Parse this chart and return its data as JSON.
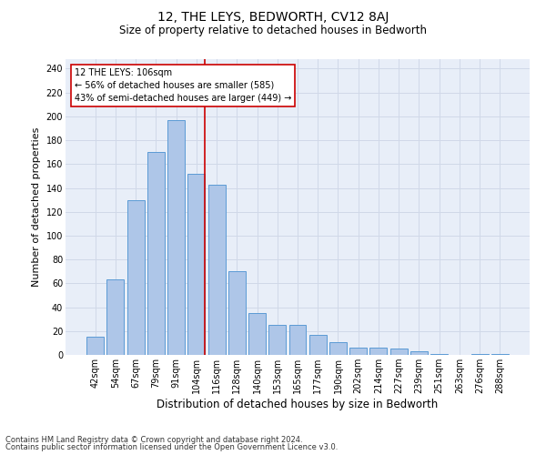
{
  "title": "12, THE LEYS, BEDWORTH, CV12 8AJ",
  "subtitle": "Size of property relative to detached houses in Bedworth",
  "xlabel": "Distribution of detached houses by size in Bedworth",
  "ylabel": "Number of detached properties",
  "footnote1": "Contains HM Land Registry data © Crown copyright and database right 2024.",
  "footnote2": "Contains public sector information licensed under the Open Government Licence v3.0.",
  "bar_labels": [
    "42sqm",
    "54sqm",
    "67sqm",
    "79sqm",
    "91sqm",
    "104sqm",
    "116sqm",
    "128sqm",
    "140sqm",
    "153sqm",
    "165sqm",
    "177sqm",
    "190sqm",
    "202sqm",
    "214sqm",
    "227sqm",
    "239sqm",
    "251sqm",
    "263sqm",
    "276sqm",
    "288sqm"
  ],
  "bar_values": [
    15,
    63,
    130,
    170,
    197,
    152,
    143,
    70,
    35,
    25,
    25,
    17,
    11,
    6,
    6,
    5,
    3,
    1,
    0,
    1,
    1
  ],
  "bar_color": "#aec6e8",
  "bar_edge_color": "#5b9bd5",
  "grid_color": "#d0d8e8",
  "background_color": "#e8eef8",
  "annotation_text_line1": "12 THE LEYS: 106sqm",
  "annotation_text_line2": "← 56% of detached houses are smaller (585)",
  "annotation_text_line3": "43% of semi-detached houses are larger (449) →",
  "red_line_color": "#cc0000",
  "annotation_box_facecolor": "#ffffff",
  "annotation_box_edgecolor": "#cc0000",
  "ylim": [
    0,
    248
  ],
  "yticks": [
    0,
    20,
    40,
    60,
    80,
    100,
    120,
    140,
    160,
    180,
    200,
    220,
    240
  ],
  "title_fontsize": 10,
  "subtitle_fontsize": 8.5,
  "ylabel_fontsize": 8,
  "xlabel_fontsize": 8.5,
  "tick_fontsize": 7,
  "ann_fontsize": 7,
  "footnote_fontsize": 6
}
